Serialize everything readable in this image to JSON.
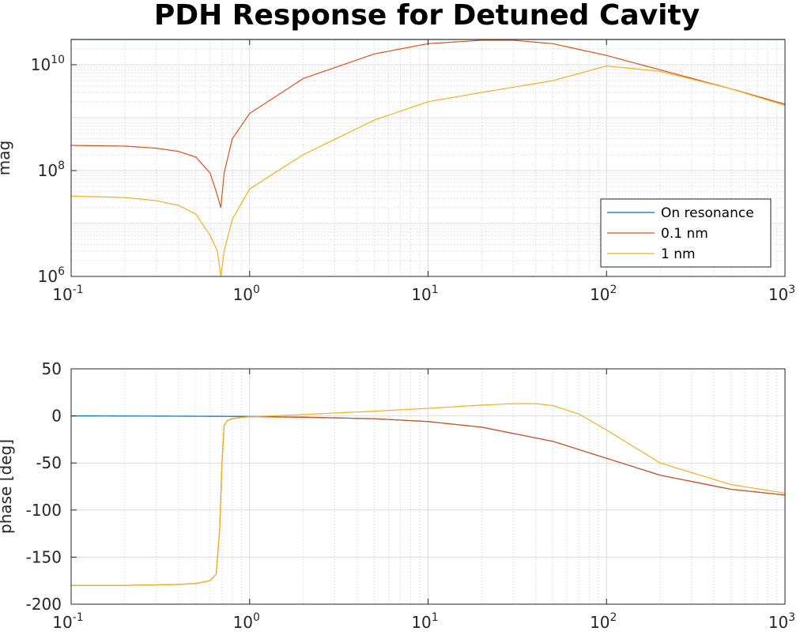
{
  "title": "PDH Response for Detuned Cavity",
  "chart_data": [
    {
      "type": "line",
      "ylabel": "mag",
      "xscale": "log",
      "yscale": "log",
      "xlim": [
        0.1,
        1000
      ],
      "ylim": [
        1000000,
        30000000000
      ],
      "xticks": [
        {
          "base": "10",
          "exp": "-1"
        },
        {
          "base": "10",
          "exp": "0"
        },
        {
          "base": "10",
          "exp": "1"
        },
        {
          "base": "10",
          "exp": "2"
        },
        {
          "base": "10",
          "exp": "3"
        }
      ],
      "yticks": [
        {
          "base": "10",
          "exp": "6"
        },
        {
          "base": "10",
          "exp": "8"
        },
        {
          "base": "10",
          "exp": "10"
        }
      ],
      "grid": "on",
      "legend_position": "bottom-right",
      "series": [
        {
          "name": "On resonance",
          "color": "#0072BD",
          "x": [
            0.1,
            1000
          ],
          "y": [
            30000000000,
            30000000000
          ]
        },
        {
          "name": "0.1 nm",
          "color": "#D95319",
          "x": [
            0.1,
            0.2,
            0.3,
            0.4,
            0.5,
            0.6,
            0.65,
            0.69,
            0.72,
            0.8,
            1,
            2,
            5,
            10,
            20,
            30,
            50,
            100,
            200,
            500,
            1000
          ],
          "y": [
            300000000,
            290000000,
            265000000,
            230000000,
            180000000,
            90000000,
            40000000,
            20000000,
            90000000,
            400000000,
            1200000000,
            5500000000,
            16000000000,
            25000000000,
            29000000000,
            29000000000,
            25000000000,
            15000000000,
            8000000000,
            3500000000,
            1800000000
          ]
        },
        {
          "name": "1 nm",
          "color": "#EDB120",
          "x": [
            0.1,
            0.2,
            0.3,
            0.4,
            0.5,
            0.6,
            0.66,
            0.69,
            0.72,
            0.8,
            1,
            2,
            5,
            10,
            20,
            50,
            100,
            200,
            500,
            1000
          ],
          "y": [
            33000000,
            31000000,
            27000000,
            22000000,
            15000000,
            6000000,
            3000000,
            1000000,
            3000000,
            12000000,
            45000000,
            200000000,
            900000000,
            2000000000,
            3000000000,
            5000000000,
            9500000000,
            7500000000,
            3500000000,
            1700000000
          ]
        }
      ]
    },
    {
      "type": "line",
      "ylabel": "phase [deg]",
      "xscale": "log",
      "xlim": [
        0.1,
        1000
      ],
      "ylim": [
        -200,
        50
      ],
      "xticks": [
        {
          "base": "10",
          "exp": "-1"
        },
        {
          "base": "10",
          "exp": "0"
        },
        {
          "base": "10",
          "exp": "1"
        },
        {
          "base": "10",
          "exp": "2"
        },
        {
          "base": "10",
          "exp": "3"
        }
      ],
      "yticks": [
        "50",
        "0",
        "-50",
        "-100",
        "-150",
        "-200"
      ],
      "grid": "on",
      "series": [
        {
          "name": "On resonance",
          "color": "#0072BD",
          "x": [
            0.1,
            0.3,
            1,
            2,
            5,
            10,
            20,
            50,
            100,
            200,
            500,
            1000
          ],
          "y": [
            0,
            -0.2,
            -0.6,
            -1.3,
            -3,
            -6,
            -12,
            -27,
            -45,
            -63,
            -78,
            -84
          ]
        },
        {
          "name": "0.1 nm",
          "color": "#D95319",
          "x": [
            0.1,
            0.2,
            0.3,
            0.4,
            0.5,
            0.6,
            0.65,
            0.68,
            0.7,
            0.72,
            0.75,
            0.8,
            0.9,
            1,
            2,
            5,
            10,
            20,
            50,
            100,
            200,
            500,
            1000
          ],
          "y": [
            -180,
            -180,
            -179.5,
            -179,
            -178,
            -175,
            -168,
            -120,
            -50,
            -10,
            -5,
            -3,
            -1.5,
            -0.8,
            -1.5,
            -3,
            -6,
            -12,
            -27,
            -45,
            -63,
            -78,
            -84
          ]
        },
        {
          "name": "1 nm",
          "color": "#EDB120",
          "x": [
            0.1,
            0.2,
            0.3,
            0.4,
            0.5,
            0.6,
            0.65,
            0.68,
            0.7,
            0.72,
            0.75,
            0.8,
            0.9,
            1,
            2,
            5,
            10,
            20,
            30,
            40,
            50,
            70,
            100,
            200,
            500,
            1000
          ],
          "y": [
            -180,
            -180,
            -179.5,
            -179,
            -178,
            -175,
            -168,
            -120,
            -50,
            -10,
            -5,
            -3,
            -1.5,
            -1,
            1.5,
            5,
            8,
            11.5,
            13,
            13,
            11,
            2,
            -15,
            -50,
            -73,
            -82
          ]
        }
      ]
    }
  ]
}
